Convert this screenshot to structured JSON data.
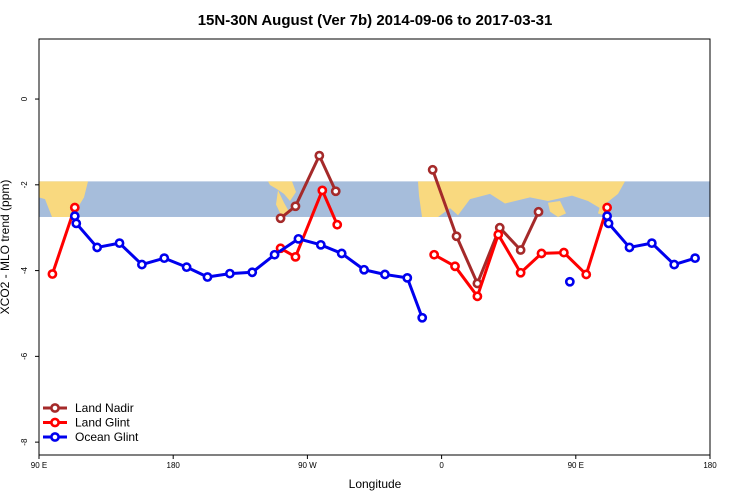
{
  "chart_data": {
    "type": "line",
    "title": "15N-30N August (Ver 7b)   2014-09-06 to 2017-03-31",
    "xlabel": "Longitude",
    "ylabel": "XCO2 - MLO trend (ppm)",
    "xlim": [
      90,
      540
    ],
    "ylim": [
      -8.3,
      1.4
    ],
    "x_ticks": [
      {
        "value": 90,
        "label": "90 E"
      },
      {
        "value": 180,
        "label": "180"
      },
      {
        "value": 270,
        "label": "90 W"
      },
      {
        "value": 360,
        "label": "0"
      },
      {
        "value": 450,
        "label": "90 E"
      },
      {
        "value": 540,
        "label": "180"
      }
    ],
    "y_ticks": [
      {
        "value": 0,
        "label": "0"
      },
      {
        "value": -2,
        "label": "-2"
      },
      {
        "value": -4,
        "label": "-4"
      },
      {
        "value": -6,
        "label": "-6"
      },
      {
        "value": -8,
        "label": "-8"
      }
    ],
    "map_band": {
      "y_top": -1.92,
      "y_bottom": -2.75,
      "ocean_color": "#a6bddb",
      "land_color": "#f9d97f"
    },
    "legend_position": "bottom-left",
    "series": [
      {
        "name": "Land Nadir",
        "color": "#a52a2a",
        "segments": [
          [
            [
              252,
              -2.78
            ],
            [
              262,
              -2.5
            ],
            [
              278,
              -1.32
            ],
            [
              289,
              -2.15
            ]
          ],
          [
            [
              354,
              -1.65
            ],
            [
              370,
              -3.2
            ],
            [
              384,
              -4.3
            ],
            [
              399,
              -3.0
            ],
            [
              413,
              -3.52
            ],
            [
              425,
              -2.63
            ]
          ]
        ]
      },
      {
        "name": "Land Glint",
        "color": "#ff0000",
        "segments": [
          [
            [
              99,
              -4.08
            ],
            [
              114,
              -2.53
            ]
          ],
          [
            [
              252,
              -3.48
            ],
            [
              262,
              -3.68
            ],
            [
              280,
              -2.13
            ],
            [
              290,
              -2.93
            ]
          ],
          [
            [
              355,
              -3.63
            ],
            [
              369,
              -3.9
            ],
            [
              384,
              -4.6
            ],
            [
              398,
              -3.16
            ],
            [
              413,
              -4.05
            ],
            [
              427,
              -3.6
            ],
            [
              442,
              -3.58
            ],
            [
              457,
              -4.09
            ],
            [
              471,
              -2.53
            ]
          ]
        ]
      },
      {
        "name": "Ocean Glint",
        "color": "#0000ee",
        "segments": [
          [
            [
              114,
              -2.73
            ],
            [
              115,
              -2.9
            ],
            [
              129,
              -3.46
            ],
            [
              144,
              -3.36
            ],
            [
              159,
              -3.86
            ],
            [
              174,
              -3.71
            ],
            [
              189,
              -3.92
            ],
            [
              203,
              -4.15
            ],
            [
              218,
              -4.07
            ],
            [
              233,
              -4.04
            ],
            [
              248,
              -3.63
            ],
            [
              264,
              -3.26
            ],
            [
              279,
              -3.4
            ],
            [
              293,
              -3.6
            ],
            [
              308,
              -3.98
            ],
            [
              322,
              -4.09
            ],
            [
              337,
              -4.17
            ],
            [
              347,
              -5.1
            ]
          ],
          [
            [
              446,
              -4.26
            ]
          ],
          [
            [
              471,
              -2.73
            ],
            [
              472,
              -2.9
            ],
            [
              486,
              -3.46
            ],
            [
              501,
              -3.36
            ],
            [
              516,
              -3.86
            ],
            [
              530,
              -3.71
            ]
          ]
        ]
      }
    ]
  }
}
